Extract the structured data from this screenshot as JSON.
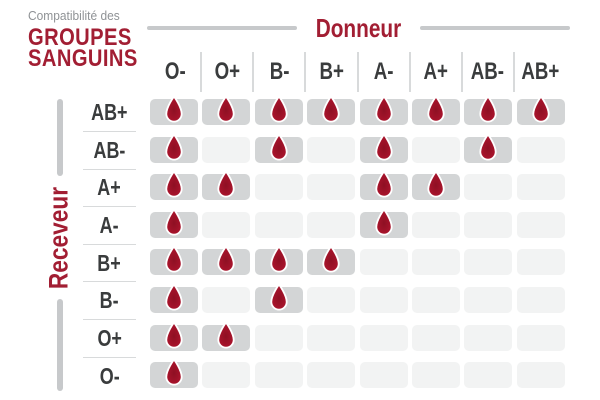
{
  "title": {
    "eyebrow": "Compatibilité des",
    "line1": "GROUPES",
    "line2": "SANGUINS"
  },
  "axes": {
    "donor": "Donneur",
    "receiver": "Receveur"
  },
  "chart_data": {
    "type": "heatmap",
    "title": "Compatibilité des GROUPES SANGUINS",
    "x_axis_label": "Donneur",
    "y_axis_label": "Receveur",
    "columns_donor": [
      "O-",
      "O+",
      "B-",
      "B+",
      "A-",
      "A+",
      "AB-",
      "AB+"
    ],
    "rows_receiver": [
      "AB+",
      "AB-",
      "A+",
      "A-",
      "B+",
      "B-",
      "O+",
      "O-"
    ],
    "compatible_matrix": [
      [
        1,
        1,
        1,
        1,
        1,
        1,
        1,
        1
      ],
      [
        1,
        0,
        1,
        0,
        1,
        0,
        1,
        0
      ],
      [
        1,
        1,
        0,
        0,
        1,
        1,
        0,
        0
      ],
      [
        1,
        0,
        0,
        0,
        1,
        0,
        0,
        0
      ],
      [
        1,
        1,
        1,
        1,
        0,
        0,
        0,
        0
      ],
      [
        1,
        0,
        1,
        0,
        0,
        0,
        0,
        0
      ],
      [
        1,
        1,
        0,
        0,
        0,
        0,
        0,
        0
      ],
      [
        1,
        0,
        0,
        0,
        0,
        0,
        0,
        0
      ]
    ],
    "marker_meaning": "blood-drop icon = compatible donation"
  },
  "colors": {
    "accent_red": "#A21E33",
    "drop_red_center": "#8E1023",
    "drop_red_edge": "#B2152F",
    "cell_filled": "#D3D5D6",
    "cell_empty": "#F2F3F3",
    "bar_gray": "#C7C9CB",
    "separator_gray": "#D8DADB",
    "heading_text": "#3A3C3D",
    "eyebrow_gray": "#8F9295"
  }
}
